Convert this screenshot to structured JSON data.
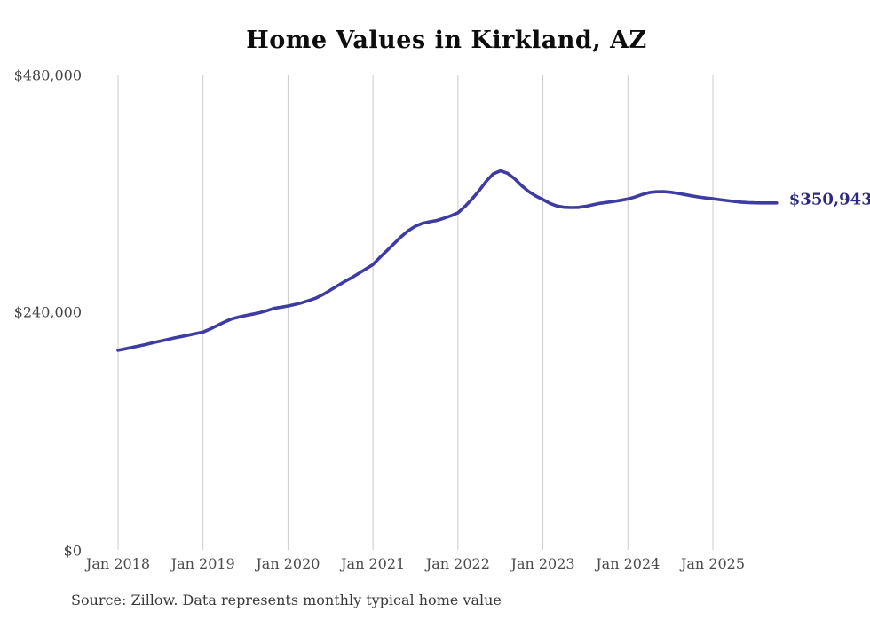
{
  "chart_data": {
    "type": "line",
    "title": "Home Values in Kirkland, AZ",
    "source": "Source: Zillow. Data represents monthly typical home value",
    "end_label": "$350,943",
    "end_value": 350943,
    "ylabel": "",
    "xlabel": "",
    "ylim": [
      0,
      480000
    ],
    "y_ticks": [
      480000,
      240000,
      0
    ],
    "y_tick_labels": [
      "$480,000",
      "$240,000",
      "$0"
    ],
    "x_tick_labels": [
      "Jan 2018",
      "Jan 2019",
      "Jan 2020",
      "Jan 2021",
      "Jan 2022",
      "Jan 2023",
      "Jan 2024",
      "Jan 2025"
    ],
    "x_start": "Jan 2018",
    "x_end": "Oct 2025",
    "points_per_year": 12,
    "grid": "vertical-only",
    "legend": "none",
    "colors": {
      "line": "#3e3ba2",
      "end_label": "#2b2a80",
      "gridline": "#cccccc",
      "title": "#0d0d0d",
      "axis_text": "#4a4a4a"
    },
    "series": [
      {
        "name": "Typical home value",
        "color": "#3e3ba2",
        "values": [
          202000,
          203400,
          204900,
          206400,
          208000,
          209700,
          211300,
          212900,
          214500,
          216000,
          217400,
          218900,
          220400,
          223500,
          227000,
          230500,
          233500,
          235500,
          237000,
          238500,
          240000,
          242000,
          244300,
          245500,
          246700,
          248300,
          250100,
          252400,
          254900,
          258500,
          262900,
          267300,
          271500,
          275400,
          279800,
          284200,
          288600,
          296000,
          303000,
          310000,
          317000,
          323000,
          327500,
          330400,
          332000,
          333200,
          335500,
          338000,
          341000,
          347500,
          355000,
          363500,
          373000,
          380500,
          383500,
          381000,
          375500,
          368500,
          362500,
          358000,
          354400,
          350500,
          347800,
          346600,
          346300,
          346500,
          347500,
          349000,
          350500,
          351500,
          352500,
          353700,
          355000,
          357000,
          359500,
          361500,
          362300,
          362400,
          361800,
          360800,
          359500,
          358200,
          357000,
          356000,
          355200,
          354300,
          353400,
          352500,
          351800,
          351300,
          351100,
          351000,
          350950,
          350943
        ]
      }
    ]
  }
}
